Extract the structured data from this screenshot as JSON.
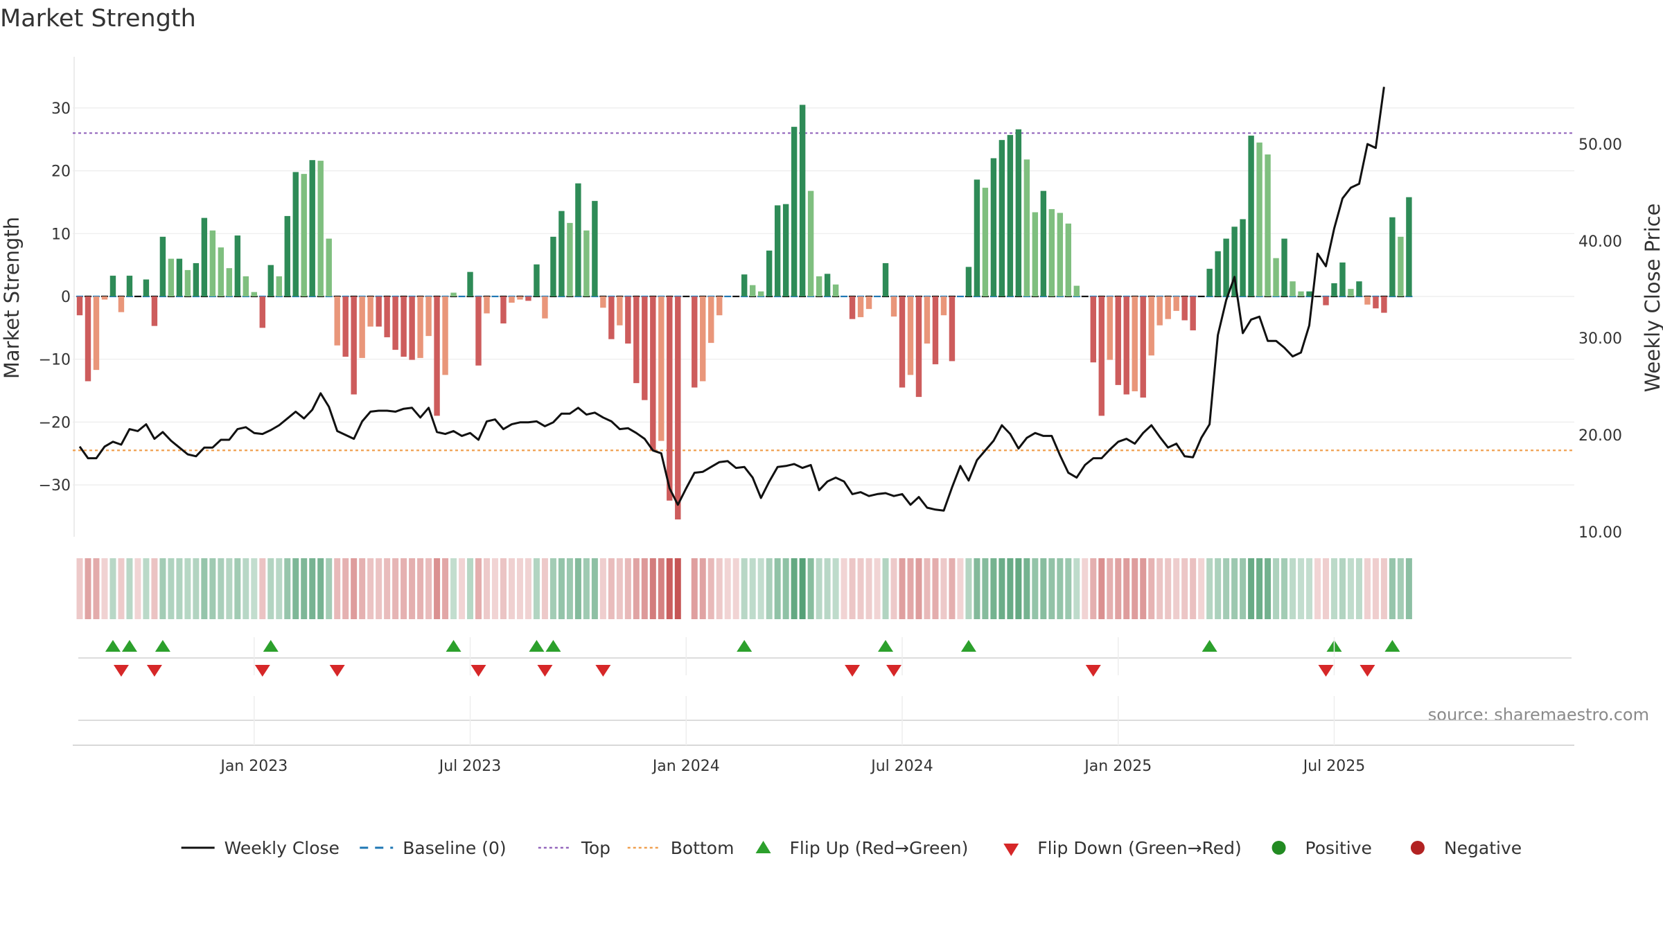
{
  "chart_data": {
    "type": "bar",
    "title": "Market Strength",
    "ylabel_left": "Market Strength",
    "ylabel_right": "Weekly Close Price",
    "ylim_left": [
      -38,
      38
    ],
    "ylim_right": [
      8.5,
      58.5
    ],
    "yticks_left": [
      -30,
      -20,
      -10,
      0,
      10,
      20,
      30
    ],
    "yticks_right": [
      "10.00",
      "20.00",
      "30.00",
      "40.00",
      "50.00"
    ],
    "top_level": 26,
    "bottom_level": -24.5,
    "date_ticks": [
      {
        "label": "Jan 2023",
        "week": 21
      },
      {
        "label": "Jul 2023",
        "week": 47
      },
      {
        "label": "Jan 2024",
        "week": 73
      },
      {
        "label": "Jul 2024",
        "week": 99
      },
      {
        "label": "Jan 2025",
        "week": 125
      },
      {
        "label": "Jul 2025",
        "week": 151
      }
    ],
    "strength": [
      -3,
      -13.5,
      -11.7,
      -0.5,
      3.3,
      -2.5,
      3.3,
      0,
      2.7,
      -4.7,
      9.5,
      6,
      6,
      4.2,
      5.3,
      12.5,
      10.5,
      7.8,
      4.5,
      9.7,
      3.2,
      0.7,
      -5,
      5,
      3.2,
      12.8,
      19.8,
      19.5,
      21.7,
      21.6,
      9.2,
      -7.8,
      -9.6,
      -15.6,
      -9.8,
      -4.8,
      -4.8,
      -6.5,
      -8.5,
      -9.6,
      -10.1,
      -9.8,
      -6.3,
      -19,
      -12.5,
      0.6,
      0,
      3.9,
      -11,
      -2.7,
      0,
      -4.3,
      -1,
      -0.5,
      -0.7,
      5.1,
      -3.5,
      9.5,
      13.6,
      11.7,
      18,
      10.5,
      15.2,
      -1.8,
      -6.8,
      -4.6,
      -7.5,
      -13.8,
      -16.5,
      -24.5,
      -23,
      -32.5,
      -35.5,
      0,
      -14.5,
      -13.5,
      -7.4,
      -3,
      0,
      0,
      3.5,
      1.8,
      0.8,
      7.3,
      14.5,
      14.7,
      27,
      30.5,
      16.8,
      3.2,
      3.6,
      1.9,
      0,
      -3.6,
      -3.3,
      -2,
      0,
      5.3,
      -3.2,
      -14.5,
      -12.5,
      -16,
      -7.5,
      -10.8,
      -3,
      -10.3,
      0,
      4.7,
      18.6,
      17.3,
      22,
      24.9,
      25.7,
      26.6,
      21.8,
      13.4,
      16.8,
      13.9,
      13.3,
      11.6,
      1.7,
      0,
      -10.5,
      -19,
      -10.1,
      -14.1,
      -15.6,
      -15.1,
      -16.1,
      -9.4,
      -4.6,
      -3.6,
      -2.3,
      -3.8,
      -5.4,
      0,
      4.4,
      7.2,
      9.2,
      11.1,
      12.3,
      25.6,
      24.5,
      22.6,
      6.1,
      9.2,
      2.4,
      0.8,
      0.8,
      0,
      -1.4,
      2.1,
      5.4,
      1.2,
      2.4,
      -1.3,
      -1.9,
      -2.6,
      12.6,
      9.5,
      15.8
    ],
    "weekly_close": [
      18.8,
      17.6,
      17.6,
      18.8,
      19.3,
      19,
      20.6,
      20.4,
      21.1,
      19.6,
      20.3,
      19.4,
      18.7,
      18,
      17.8,
      18.7,
      18.7,
      19.5,
      19.5,
      20.6,
      20.8,
      20.2,
      20.1,
      20.5,
      21,
      21.7,
      22.4,
      21.7,
      22.6,
      24.3,
      22.9,
      20.4,
      20,
      19.6,
      21.4,
      22.4,
      22.5,
      22.5,
      22.4,
      22.7,
      22.8,
      21.8,
      22.8,
      20.3,
      20.1,
      20.4,
      19.9,
      20.2,
      19.5,
      21.4,
      21.6,
      20.6,
      21.1,
      21.3,
      21.3,
      21.4,
      20.9,
      21.3,
      22.2,
      22.2,
      22.8,
      22.1,
      22.3,
      21.8,
      21.4,
      20.6,
      20.7,
      20.2,
      19.6,
      18.4,
      18.1,
      14.5,
      12.8,
      14.5,
      16.1,
      16.2,
      16.7,
      17.2,
      17.3,
      16.6,
      16.7,
      15.6,
      13.5,
      15.2,
      16.7,
      16.8,
      17,
      16.6,
      16.9,
      14.3,
      15.2,
      15.6,
      15.2,
      13.9,
      14.1,
      13.7,
      13.9,
      14,
      13.7,
      13.9,
      12.8,
      13.6,
      12.5,
      12.3,
      12.2,
      14.6,
      16.8,
      15.3,
      17.4,
      18.4,
      19.4,
      21,
      20.1,
      18.6,
      19.7,
      20.2,
      19.9,
      19.9,
      17.9,
      16.1,
      15.6,
      16.9,
      17.6,
      17.6,
      18.5,
      19.3,
      19.6,
      19.1,
      20.2,
      21,
      19.8,
      18.7,
      19.1,
      17.8,
      17.7,
      19.7,
      21.1,
      30.3,
      33.9,
      36.3,
      30.5,
      31.9,
      32.2,
      29.7,
      29.7,
      29,
      28.1,
      28.5,
      31.3,
      38.7,
      37.4,
      41.3,
      44.4,
      45.5,
      45.9,
      50,
      49.6,
      55.9
    ]
  },
  "legend": [
    {
      "label": "Weekly Close",
      "kind": "line",
      "color": "#111111"
    },
    {
      "label": "Baseline (0)",
      "kind": "dash",
      "color": "#1f77b4"
    },
    {
      "label": "Top",
      "kind": "dot",
      "color": "#9467bd"
    },
    {
      "label": "Bottom",
      "kind": "dot",
      "color": "#f0a050"
    },
    {
      "label": "Flip Up (Red→Green)",
      "kind": "triangle-up",
      "color": "#2ca02c"
    },
    {
      "label": "Flip Down (Green→Red)",
      "kind": "triangle-down",
      "color": "#d62728"
    },
    {
      "label": "Positive",
      "kind": "circle",
      "color": "#228b22"
    },
    {
      "label": "Negative",
      "kind": "circle",
      "color": "#b22222"
    }
  ],
  "colors": {
    "pos_strong": "#2e8b57",
    "pos_weak": "#7fbf7f",
    "neg_strong": "#cd5c5c",
    "neg_weak": "#e9967a",
    "price": "#111111",
    "baseline": "#1f77b4",
    "top": "#9467bd",
    "bottom": "#f0a050",
    "flip_up": "#2ca02c",
    "flip_down": "#d62728"
  },
  "source": "source: sharemaestro.com"
}
